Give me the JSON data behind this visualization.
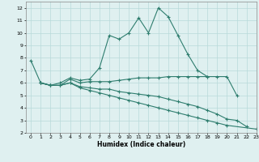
{
  "xlabel": "Humidex (Indice chaleur)",
  "xlim": [
    -0.5,
    23
  ],
  "ylim": [
    2,
    12.5
  ],
  "yticks": [
    2,
    3,
    4,
    5,
    6,
    7,
    8,
    9,
    10,
    11,
    12
  ],
  "xticks": [
    0,
    1,
    2,
    3,
    4,
    5,
    6,
    7,
    8,
    9,
    10,
    11,
    12,
    13,
    14,
    15,
    16,
    17,
    18,
    19,
    20,
    21,
    22,
    23
  ],
  "line_color": "#2e7d6e",
  "bg_color": "#dff0f0",
  "grid_color": "#b8dada",
  "lines": [
    {
      "x": [
        0,
        1,
        2,
        3,
        4,
        5,
        6,
        7,
        8,
        9,
        10,
        11,
        12,
        13,
        14,
        15,
        16,
        17,
        18
      ],
      "y": [
        7.8,
        6.0,
        5.8,
        6.0,
        6.4,
        6.2,
        6.3,
        7.2,
        9.8,
        9.5,
        10.0,
        11.2,
        10.0,
        12.0,
        11.3,
        9.8,
        8.3,
        7.0,
        6.5
      ]
    },
    {
      "x": [
        1,
        2,
        3,
        4,
        5,
        6,
        7,
        8,
        9,
        10,
        11,
        12,
        13,
        14,
        15,
        16,
        17,
        18,
        19,
        20,
        21
      ],
      "y": [
        6.0,
        5.8,
        5.8,
        6.3,
        6.0,
        6.1,
        6.1,
        6.1,
        6.2,
        6.3,
        6.4,
        6.4,
        6.4,
        6.5,
        6.5,
        6.5,
        6.5,
        6.5,
        6.5,
        6.5,
        5.0
      ]
    },
    {
      "x": [
        1,
        2,
        3,
        4,
        5,
        6,
        7,
        8,
        9,
        10,
        11,
        12,
        13,
        14,
        15,
        16,
        17,
        18,
        19,
        20,
        21,
        22
      ],
      "y": [
        6.0,
        5.8,
        5.8,
        6.0,
        5.7,
        5.6,
        5.5,
        5.5,
        5.3,
        5.2,
        5.1,
        5.0,
        4.9,
        4.7,
        4.5,
        4.3,
        4.1,
        3.8,
        3.5,
        3.1,
        3.0,
        2.5
      ]
    },
    {
      "x": [
        1,
        2,
        3,
        4,
        5,
        6,
        7,
        8,
        9,
        10,
        11,
        12,
        13,
        14,
        15,
        16,
        17,
        18,
        19,
        20,
        21,
        22,
        23
      ],
      "y": [
        6.0,
        5.8,
        5.8,
        6.0,
        5.6,
        5.4,
        5.2,
        5.0,
        4.8,
        4.6,
        4.4,
        4.2,
        4.0,
        3.8,
        3.6,
        3.4,
        3.2,
        3.0,
        2.8,
        2.6,
        null,
        null,
        2.3
      ]
    }
  ]
}
